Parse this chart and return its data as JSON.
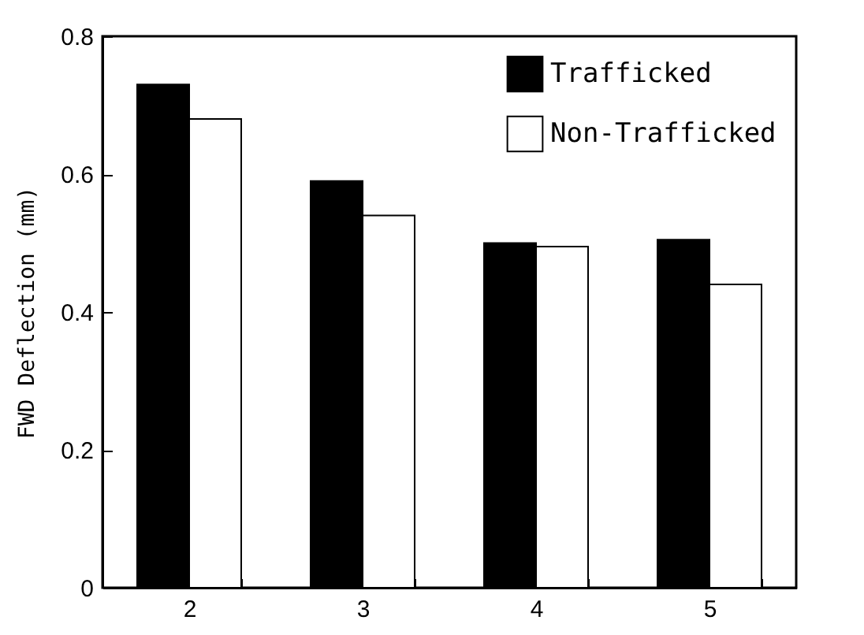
{
  "chart_data": {
    "type": "bar",
    "ylabel": "FWD Deflection (mm)",
    "categories": [
      "2",
      "3",
      "4",
      "5"
    ],
    "series": [
      {
        "name": "Trafficked",
        "color": "#000000",
        "values": [
          0.73,
          0.59,
          0.5,
          0.505
        ]
      },
      {
        "name": "Non-Trafficked",
        "color": "#ffffff",
        "values": [
          0.68,
          0.54,
          0.495,
          0.44
        ]
      }
    ],
    "ylim": [
      0,
      0.8
    ],
    "yticks": [
      0,
      0.2,
      0.4,
      0.6,
      0.8
    ],
    "grid": false,
    "legend": "top right"
  }
}
